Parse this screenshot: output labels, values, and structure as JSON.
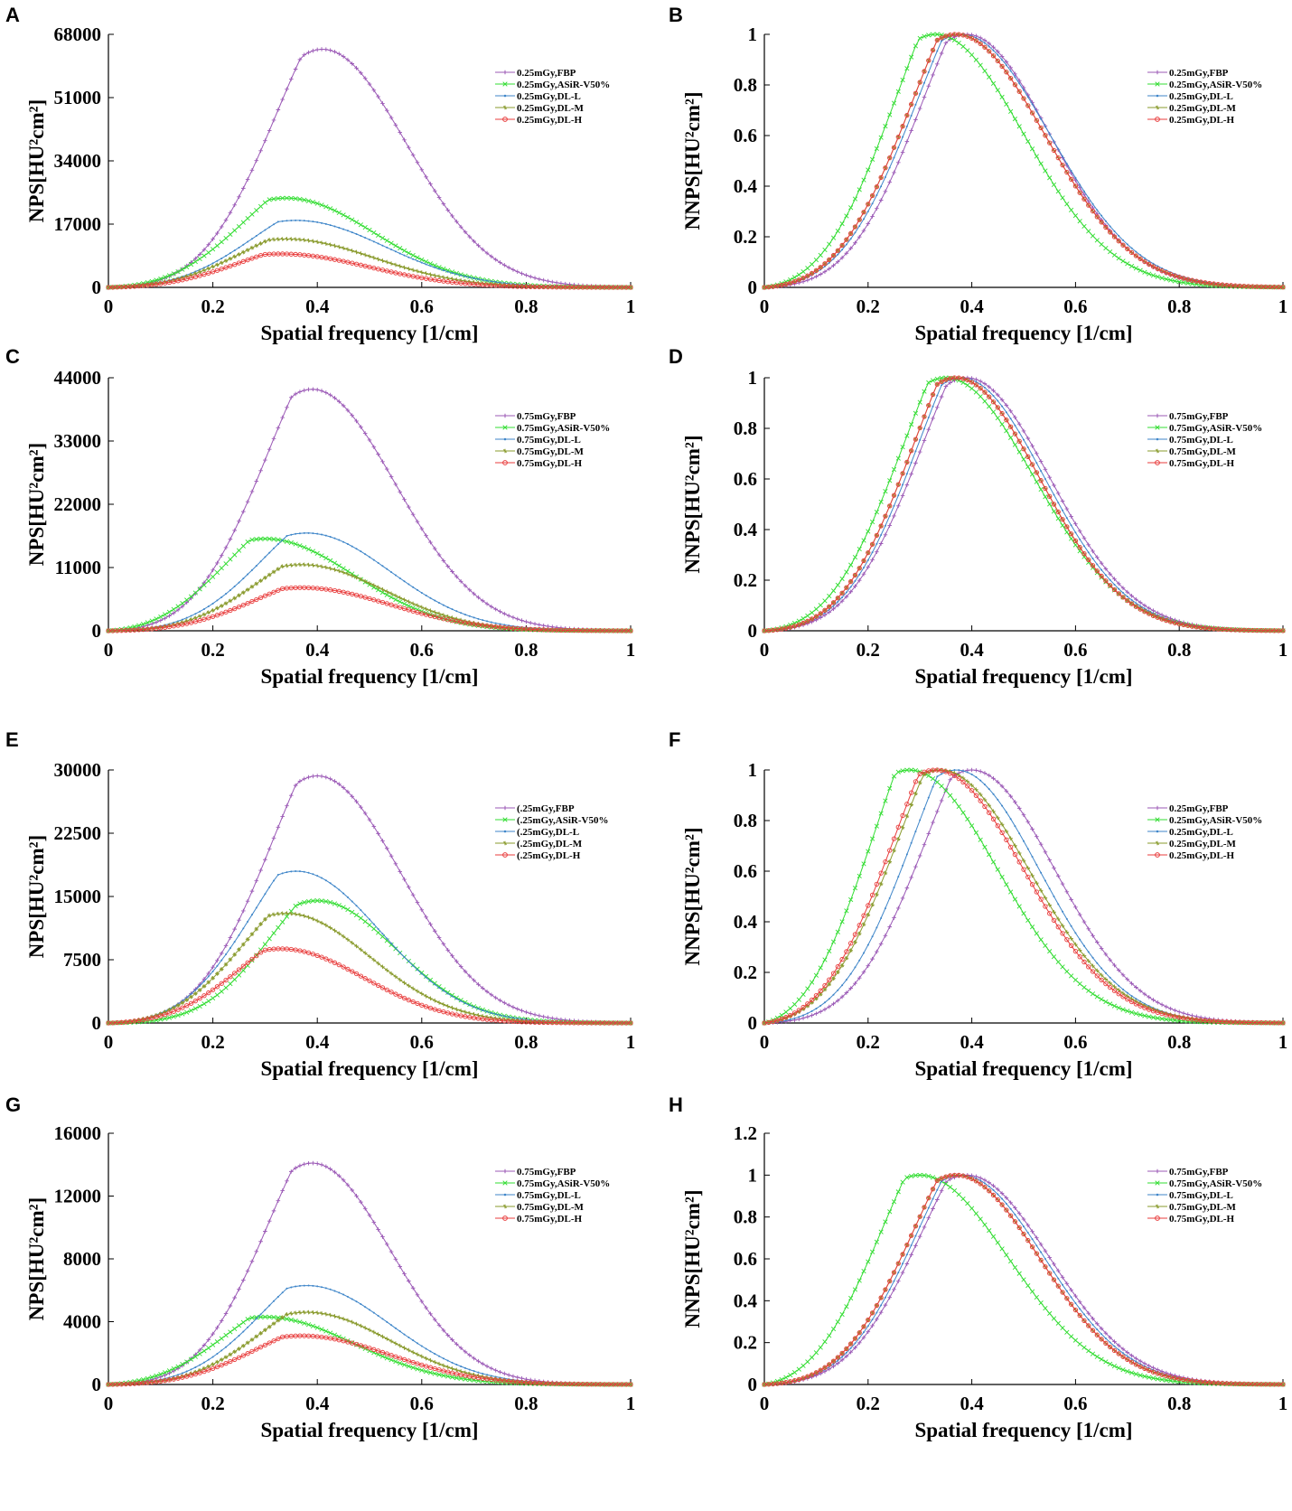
{
  "chart_data": [
    {
      "panel": "A",
      "type": "line",
      "xlabel": "Spatial frequency [1/cm]",
      "ylabel": "NPS[HU²cm²]",
      "xlim": [
        0,
        1
      ],
      "ylim": [
        0,
        68000
      ],
      "yticks": [
        "0",
        "17000",
        "34000",
        "51000",
        "68000"
      ],
      "xticks": [
        "0",
        "0.2",
        "0.4",
        "0.6",
        "0.8",
        "1"
      ],
      "series": [
        {
          "name": "0.25mGy,FBP",
          "peak": 64000,
          "peak_x": 0.41,
          "spread": 0.16
        },
        {
          "name": "0.25mGy,ASiR-V50%",
          "peak": 24000,
          "peak_x": 0.34,
          "spread": 0.17
        },
        {
          "name": "0.25mGy,DL-L",
          "peak": 18000,
          "peak_x": 0.36,
          "spread": 0.17
        },
        {
          "name": "0.25mGy,DL-M",
          "peak": 13000,
          "peak_x": 0.34,
          "spread": 0.17
        },
        {
          "name": "0.25mGy,DL-H",
          "peak": 9000,
          "peak_x": 0.33,
          "spread": 0.17
        }
      ]
    },
    {
      "panel": "B",
      "type": "line",
      "xlabel": "Spatial frequency [1/cm]",
      "ylabel": "NNPS[HU²cm²]",
      "xlim": [
        0,
        1
      ],
      "ylim": [
        0,
        1
      ],
      "yticks": [
        "0",
        "0.2",
        "0.4",
        "0.6",
        "0.8",
        "1"
      ],
      "xticks": [
        "0",
        "0.2",
        "0.4",
        "0.6",
        "0.8",
        "1"
      ],
      "series": [
        {
          "name": "0.25mGy,FBP",
          "peak": 1,
          "peak_x": 0.39,
          "spread": 0.16
        },
        {
          "name": "0.25mGy,ASiR-V50%",
          "peak": 1,
          "peak_x": 0.33,
          "spread": 0.17
        },
        {
          "name": "0.25mGy,DL-L",
          "peak": 1,
          "peak_x": 0.38,
          "spread": 0.17
        },
        {
          "name": "0.25mGy,DL-M",
          "peak": 1,
          "peak_x": 0.37,
          "spread": 0.17
        },
        {
          "name": "0.25mGy,DL-H",
          "peak": 1,
          "peak_x": 0.37,
          "spread": 0.17
        }
      ]
    },
    {
      "panel": "C",
      "type": "line",
      "xlabel": "Spatial frequency [1/cm]",
      "ylabel": "NPS[HU²cm²]",
      "xlim": [
        0,
        1
      ],
      "ylim": [
        0,
        44000
      ],
      "yticks": [
        "0",
        "11000",
        "22000",
        "33000",
        "44000"
      ],
      "xticks": [
        "0",
        "0.2",
        "0.4",
        "0.6",
        "0.8",
        "1"
      ],
      "series": [
        {
          "name": "0.75mGy,FBP",
          "peak": 42000,
          "peak_x": 0.39,
          "spread": 0.16
        },
        {
          "name": "0.75mGy,ASiR-V50%",
          "peak": 16000,
          "peak_x": 0.3,
          "spread": 0.17
        },
        {
          "name": "0.75mGy,DL-L",
          "peak": 17000,
          "peak_x": 0.38,
          "spread": 0.16
        },
        {
          "name": "0.75mGy,DL-M",
          "peak": 11500,
          "peak_x": 0.37,
          "spread": 0.16
        },
        {
          "name": "0.75mGy,DL-H",
          "peak": 7500,
          "peak_x": 0.37,
          "spread": 0.17
        }
      ]
    },
    {
      "panel": "D",
      "type": "line",
      "xlabel": "Spatial frequency [1/cm]",
      "ylabel": "NNPS[HU²cm²]",
      "xlim": [
        0,
        1
      ],
      "ylim": [
        0,
        1
      ],
      "yticks": [
        "0",
        "0.2",
        "0.4",
        "0.6",
        "0.8",
        "1"
      ],
      "xticks": [
        "0",
        "0.2",
        "0.4",
        "0.6",
        "0.8",
        "1"
      ],
      "series": [
        {
          "name": "0.75mGy,FBP",
          "peak": 1,
          "peak_x": 0.39,
          "spread": 0.16
        },
        {
          "name": "0.75mGy,ASiR-V50%",
          "peak": 1,
          "peak_x": 0.35,
          "spread": 0.17
        },
        {
          "name": "0.75mGy,DL-L",
          "peak": 1,
          "peak_x": 0.38,
          "spread": 0.16
        },
        {
          "name": "0.75mGy,DL-M",
          "peak": 1,
          "peak_x": 0.37,
          "spread": 0.16
        },
        {
          "name": "0.75mGy,DL-H",
          "peak": 1,
          "peak_x": 0.37,
          "spread": 0.16
        }
      ]
    },
    {
      "panel": "E",
      "type": "line",
      "xlabel": "Spatial frequency [1/cm]",
      "ylabel": "NPS[HU²cm²]",
      "xlim": [
        0,
        1
      ],
      "ylim": [
        0,
        30000
      ],
      "yticks": [
        "0",
        "7500",
        "15000",
        "22500",
        "30000"
      ],
      "xticks": [
        "0",
        "0.2",
        "0.4",
        "0.6",
        "0.8",
        "1"
      ],
      "series": [
        {
          "name": "(.25mGy,FBP",
          "peak": 29300,
          "peak_x": 0.4,
          "spread": 0.16
        },
        {
          "name": "(.25mGy,ASiR-V50%",
          "peak": 14500,
          "peak_x": 0.4,
          "spread": 0.15
        },
        {
          "name": "(.25mGy,DL-L",
          "peak": 18000,
          "peak_x": 0.36,
          "spread": 0.16
        },
        {
          "name": "(.25mGy,DL-M",
          "peak": 13000,
          "peak_x": 0.34,
          "spread": 0.16
        },
        {
          "name": "(.25mGy,DL-H",
          "peak": 8800,
          "peak_x": 0.33,
          "spread": 0.16
        }
      ]
    },
    {
      "panel": "F",
      "type": "line",
      "xlabel": "Spatial frequency [1/cm]",
      "ylabel": "NNPS[HU²cm²]",
      "xlim": [
        0,
        1
      ],
      "ylim": [
        0,
        1
      ],
      "yticks": [
        "0",
        "0.2",
        "0.4",
        "0.6",
        "0.8",
        "1"
      ],
      "xticks": [
        "0",
        "0.2",
        "0.4",
        "0.6",
        "0.8",
        "1"
      ],
      "series": [
        {
          "name": "0.25mGy,FBP",
          "peak": 1,
          "peak_x": 0.4,
          "spread": 0.16
        },
        {
          "name": "0.25mGy,ASiR-V50%",
          "peak": 1,
          "peak_x": 0.28,
          "spread": 0.17
        },
        {
          "name": "0.25mGy,DL-L",
          "peak": 1,
          "peak_x": 0.37,
          "spread": 0.16
        },
        {
          "name": "0.25mGy,DL-M",
          "peak": 1,
          "peak_x": 0.34,
          "spread": 0.17
        },
        {
          "name": "0.25mGy,DL-H",
          "peak": 1,
          "peak_x": 0.33,
          "spread": 0.17
        }
      ]
    },
    {
      "panel": "G",
      "type": "line",
      "xlabel": "Spatial frequency [1/cm]",
      "ylabel": "NPS[HU²cm²]",
      "xlim": [
        0,
        1
      ],
      "ylim": [
        0,
        16000
      ],
      "yticks": [
        "0",
        "4000",
        "8000",
        "12000",
        "16000"
      ],
      "xticks": [
        "0",
        "0.2",
        "0.4",
        "0.6",
        "0.8",
        "1"
      ],
      "series": [
        {
          "name": "0.75mGy,FBP",
          "peak": 14100,
          "peak_x": 0.39,
          "spread": 0.15
        },
        {
          "name": "0.75mGy,ASiR-V50%",
          "peak": 4300,
          "peak_x": 0.3,
          "spread": 0.17
        },
        {
          "name": "0.75mGy,DL-L",
          "peak": 6300,
          "peak_x": 0.38,
          "spread": 0.16
        },
        {
          "name": "0.75mGy,DL-M",
          "peak": 4600,
          "peak_x": 0.38,
          "spread": 0.16
        },
        {
          "name": "0.75mGy,DL-H",
          "peak": 3100,
          "peak_x": 0.37,
          "spread": 0.17
        }
      ]
    },
    {
      "panel": "H",
      "type": "line",
      "xlabel": "Spatial frequency [1/cm]",
      "ylabel": "NNPS[HU²cm²]",
      "xlim": [
        0,
        1
      ],
      "ylim": [
        0,
        1.2
      ],
      "yticks": [
        "0",
        "0.2",
        "0.4",
        "0.6",
        "0.8",
        "1",
        "1.2"
      ],
      "xticks": [
        "0",
        "0.2",
        "0.4",
        "0.6",
        "0.8",
        "1"
      ],
      "series": [
        {
          "name": "0.75mGy,FBP",
          "peak": 1,
          "peak_x": 0.39,
          "spread": 0.16
        },
        {
          "name": "0.75mGy,ASiR-V50%",
          "peak": 1,
          "peak_x": 0.3,
          "spread": 0.17
        },
        {
          "name": "0.75mGy,DL-L",
          "peak": 1,
          "peak_x": 0.38,
          "spread": 0.16
        },
        {
          "name": "0.75mGy,DL-M",
          "peak": 1,
          "peak_x": 0.37,
          "spread": 0.16
        },
        {
          "name": "0.75mGy,DL-H",
          "peak": 1,
          "peak_x": 0.37,
          "spread": 0.16
        }
      ]
    }
  ],
  "series_colors": [
    "#9b59b6",
    "#33dd33",
    "#3f86c9",
    "#8a9b2e",
    "#e83c3c"
  ],
  "series_markers": [
    "plus-marker",
    "x-marker",
    "dot-marker",
    "star-marker",
    "circle-marker"
  ]
}
